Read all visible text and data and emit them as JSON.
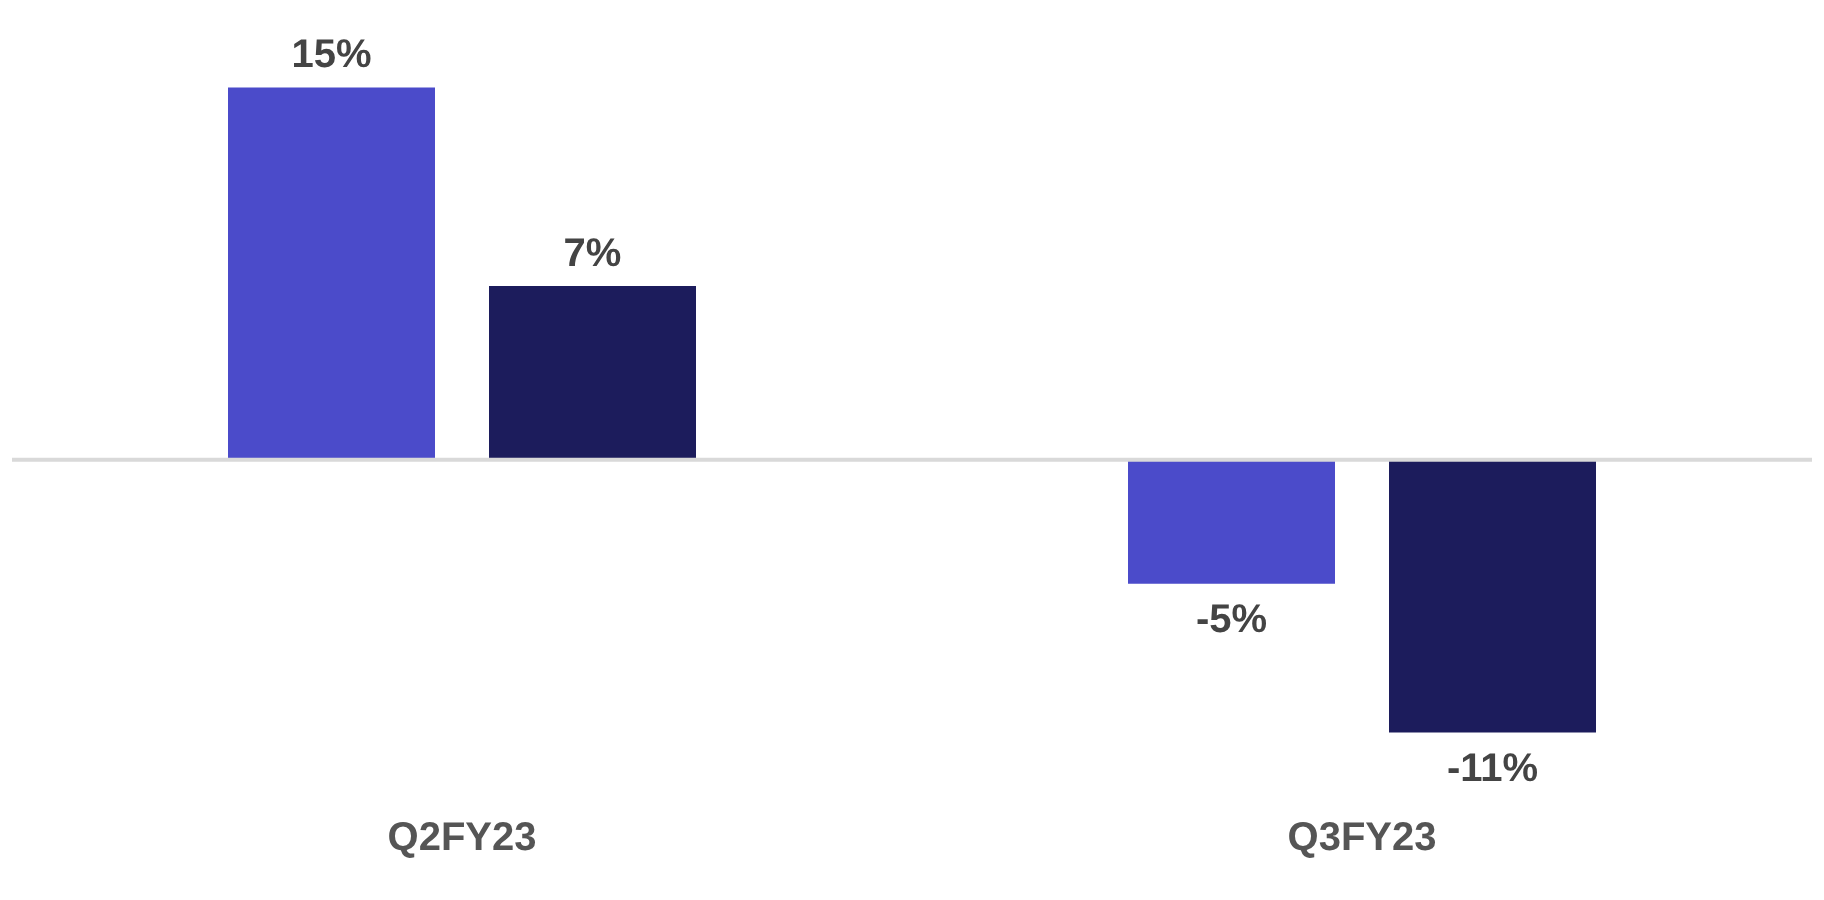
{
  "chart_data": {
    "type": "bar",
    "categories": [
      "Q2FY23",
      "Q3FY23"
    ],
    "grid": false,
    "legend": false,
    "series": [
      {
        "color": "#4b4bca",
        "values": [
          15,
          -5
        ],
        "value_labels": [
          "15%",
          "-5%"
        ]
      },
      {
        "color": "#1c1c5c",
        "values": [
          7,
          -11
        ],
        "value_labels": [
          "7%",
          "-11%"
        ]
      }
    ]
  }
}
